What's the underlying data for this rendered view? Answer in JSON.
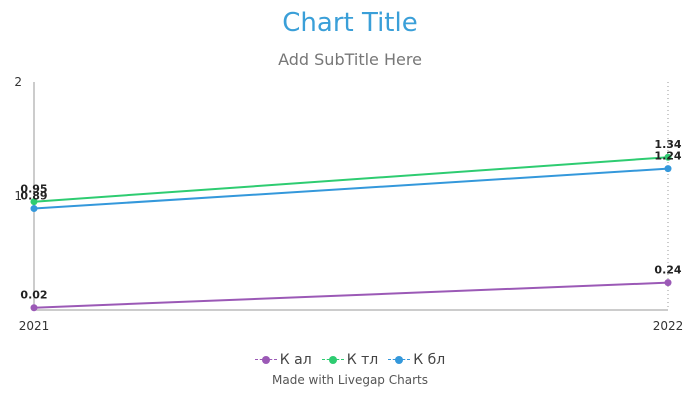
{
  "chart_data": {
    "type": "line",
    "title": "Chart Title",
    "subtitle": "Add SubTitle Here",
    "x": [
      "2021",
      "2022"
    ],
    "ylim": [
      0,
      2
    ],
    "y_ticks": [
      "2",
      "1"
    ],
    "grid": false,
    "legend_position": "bottom",
    "series": [
      {
        "name": "К ал",
        "color": "#9b59b6",
        "values": [
          0.02,
          0.24
        ],
        "labels": [
          "0.02",
          "0.24"
        ]
      },
      {
        "name": "К тл",
        "color": "#2ecc71",
        "values": [
          0.95,
          1.34
        ],
        "labels": [
          "0.95",
          "1.34"
        ]
      },
      {
        "name": "К бл",
        "color": "#3498db",
        "values": [
          0.89,
          1.24
        ],
        "labels": [
          "0.89",
          "1.24"
        ]
      }
    ]
  },
  "footer": {
    "credit": "Made with Livegap Charts"
  }
}
